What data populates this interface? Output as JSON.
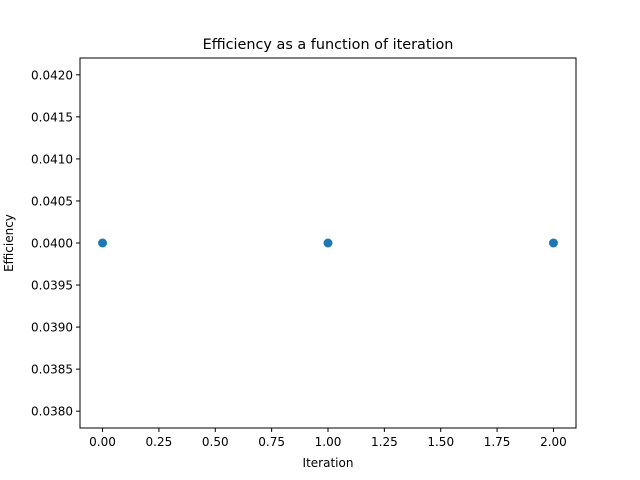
{
  "chart_data": {
    "type": "scatter",
    "title": "Efficiency as a function of iteration",
    "xlabel": "Iteration",
    "ylabel": "Efficiency",
    "xlim": [
      -0.1,
      2.1
    ],
    "ylim": [
      0.0378,
      0.0422
    ],
    "x_ticks": [
      0.0,
      0.25,
      0.5,
      0.75,
      1.0,
      1.25,
      1.5,
      1.75,
      2.0
    ],
    "x_tick_labels": [
      "0.00",
      "0.25",
      "0.50",
      "0.75",
      "1.00",
      "1.25",
      "1.50",
      "1.75",
      "2.00"
    ],
    "y_ticks": [
      0.038,
      0.0385,
      0.039,
      0.0395,
      0.04,
      0.0405,
      0.041,
      0.0415,
      0.042
    ],
    "y_tick_labels": [
      "0.0380",
      "0.0385",
      "0.0390",
      "0.0395",
      "0.0400",
      "0.0405",
      "0.0410",
      "0.0415",
      "0.0420"
    ],
    "grid": false,
    "series": [
      {
        "color": "#1f77b4",
        "points": [
          {
            "x": 0,
            "y": 0.04
          },
          {
            "x": 1,
            "y": 0.04
          },
          {
            "x": 2,
            "y": 0.04
          }
        ]
      }
    ]
  }
}
